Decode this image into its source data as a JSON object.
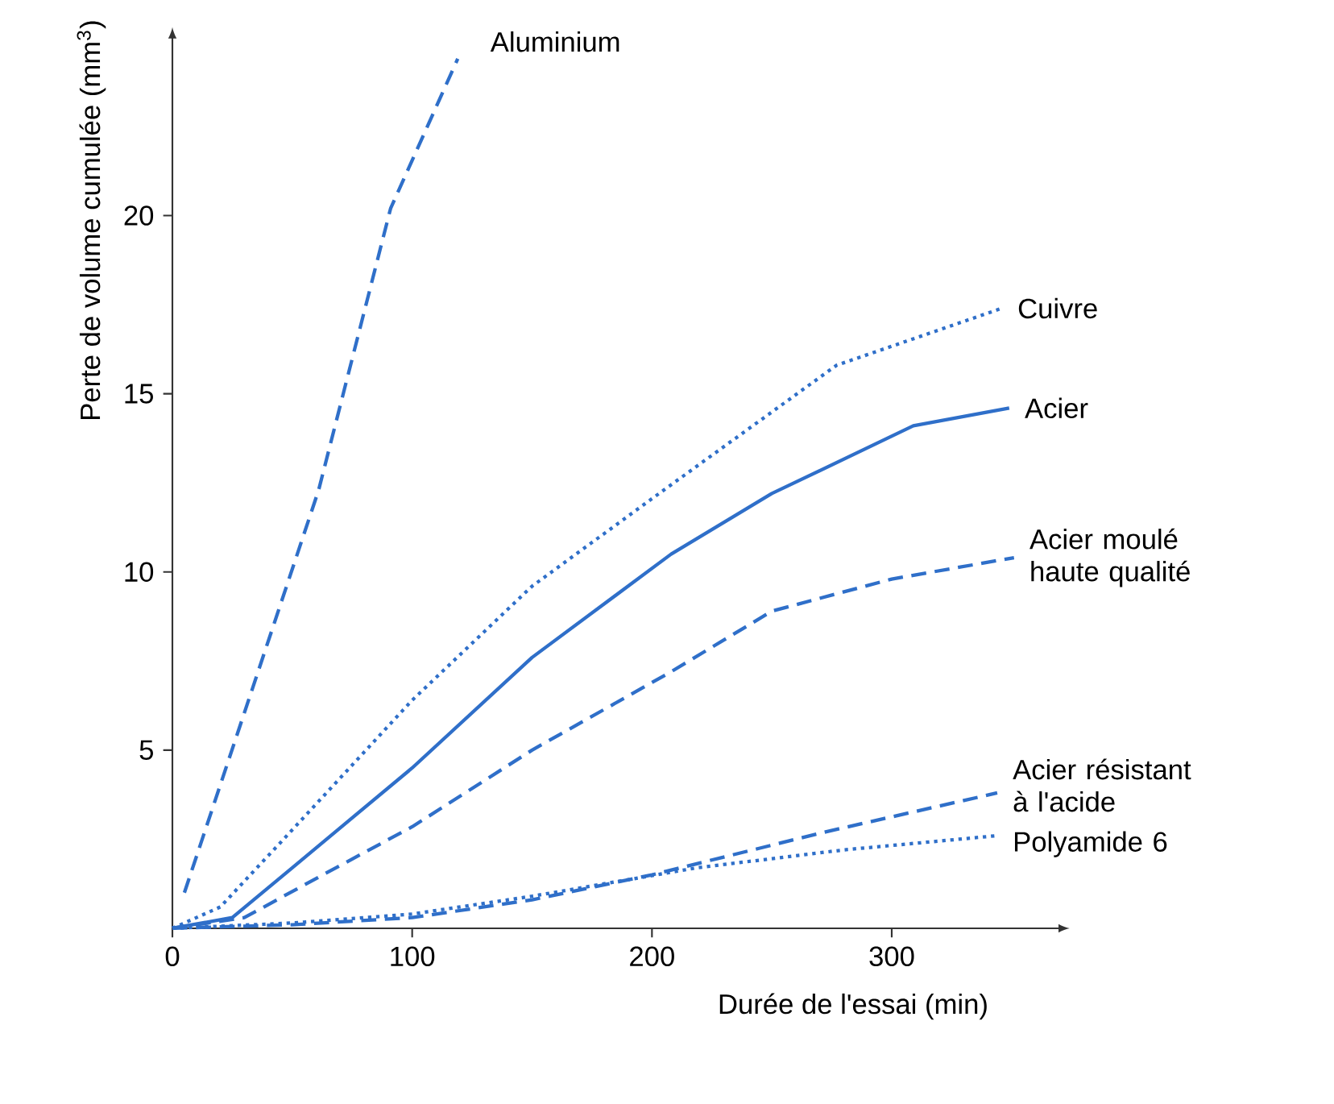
{
  "chart_data": {
    "type": "line",
    "xlabel": "Durée de l'essai (min)",
    "ylabel": "Perte de volume cumulée (mm$^{3}$)",
    "xlim": [
      0,
      370
    ],
    "ylim": [
      0,
      25
    ],
    "xticks": [
      0,
      100,
      200,
      300
    ],
    "yticks": [
      5,
      10,
      15,
      20
    ],
    "grid": false,
    "legend": false,
    "marker": "none",
    "series": [
      {
        "name": "Aluminium",
        "color": "#2f6fc9",
        "line_style": "dashed",
        "x": [
          5,
          61,
          91,
          119
        ],
        "values": [
          1,
          12.3,
          20.2,
          24.4
        ]
      },
      {
        "name": "Cuivre",
        "color": "#2f6fc9",
        "line_style": "dotted",
        "x": [
          0,
          20,
          45,
          100,
          150,
          205,
          277,
          346
        ],
        "values": [
          0,
          0.6,
          2.4,
          6.4,
          9.6,
          12.3,
          15.8,
          17.4
        ]
      },
      {
        "name": "Acier",
        "color": "#2f6fc9",
        "line_style": "solid",
        "x": [
          0,
          25,
          50,
          100,
          150,
          208,
          250,
          309,
          349
        ],
        "values": [
          0,
          0.3,
          1.7,
          4.5,
          7.6,
          10.5,
          12.2,
          14.1,
          14.6
        ]
      },
      {
        "name": "Acier moulé haute qualité",
        "color": "#2f6fc9",
        "line_style": "dashed",
        "x": [
          0,
          30,
          60,
          100,
          150,
          208,
          250,
          300,
          351
        ],
        "values": [
          0,
          0.3,
          1.4,
          2.85,
          5.0,
          7.2,
          8.9,
          9.8,
          10.4
        ]
      },
      {
        "name": "Acier résistant à l'acide",
        "color": "#2f6fc9",
        "line_style": "dashed",
        "x": [
          0,
          50,
          100,
          150,
          200,
          272,
          344
        ],
        "values": [
          0,
          0.1,
          0.3,
          0.8,
          1.5,
          2.7,
          3.8
        ]
      },
      {
        "name": "Polyamide 6",
        "color": "#2f6fc9",
        "line_style": "dotted",
        "x": [
          0,
          50,
          100,
          150,
          219,
          280,
          344
        ],
        "values": [
          0,
          0.15,
          0.4,
          0.9,
          1.7,
          2.2,
          2.6
        ]
      }
    ]
  }
}
